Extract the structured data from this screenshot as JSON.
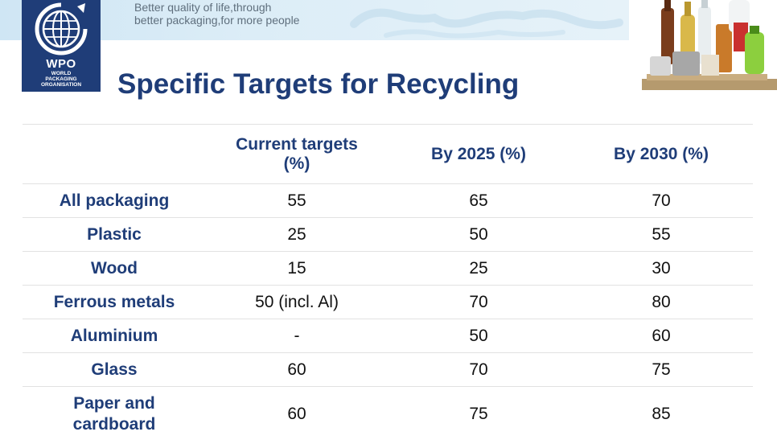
{
  "header": {
    "tagline_line1": "Better quality of life,through",
    "tagline_line2": "better packaging,for more people",
    "logo_text": "WPO",
    "logo_sub1": "WORLD",
    "logo_sub2": "PACKAGING",
    "logo_sub3": "ORGANISATION"
  },
  "title": "Specific Targets for Recycling",
  "table": {
    "columns": [
      "",
      "Current targets (%)",
      "By 2025 (%)",
      "By 2030 (%)"
    ],
    "rows": [
      {
        "material": "All packaging",
        "current": "55",
        "by2025": "65",
        "by2030": "70"
      },
      {
        "material": "Plastic",
        "current": "25",
        "by2025": "50",
        "by2030": "55"
      },
      {
        "material": "Wood",
        "current": "15",
        "by2025": "25",
        "by2030": "30"
      },
      {
        "material": "Ferrous metals",
        "current": "50 (incl. Al)",
        "by2025": "70",
        "by2030": "80"
      },
      {
        "material": "Aluminium",
        "current": "-",
        "by2025": "50",
        "by2030": "60"
      },
      {
        "material": "Glass",
        "current": "60",
        "by2025": "70",
        "by2030": "75"
      },
      {
        "material": "Paper and cardboard",
        "current": "60",
        "by2025": "75",
        "by2030": "85"
      }
    ]
  },
  "colors": {
    "brand_blue": "#1f3d78",
    "banner_blue": "#d6ebf6"
  },
  "icons": [
    "globe-logo-icon",
    "packaging-bottles-image"
  ]
}
